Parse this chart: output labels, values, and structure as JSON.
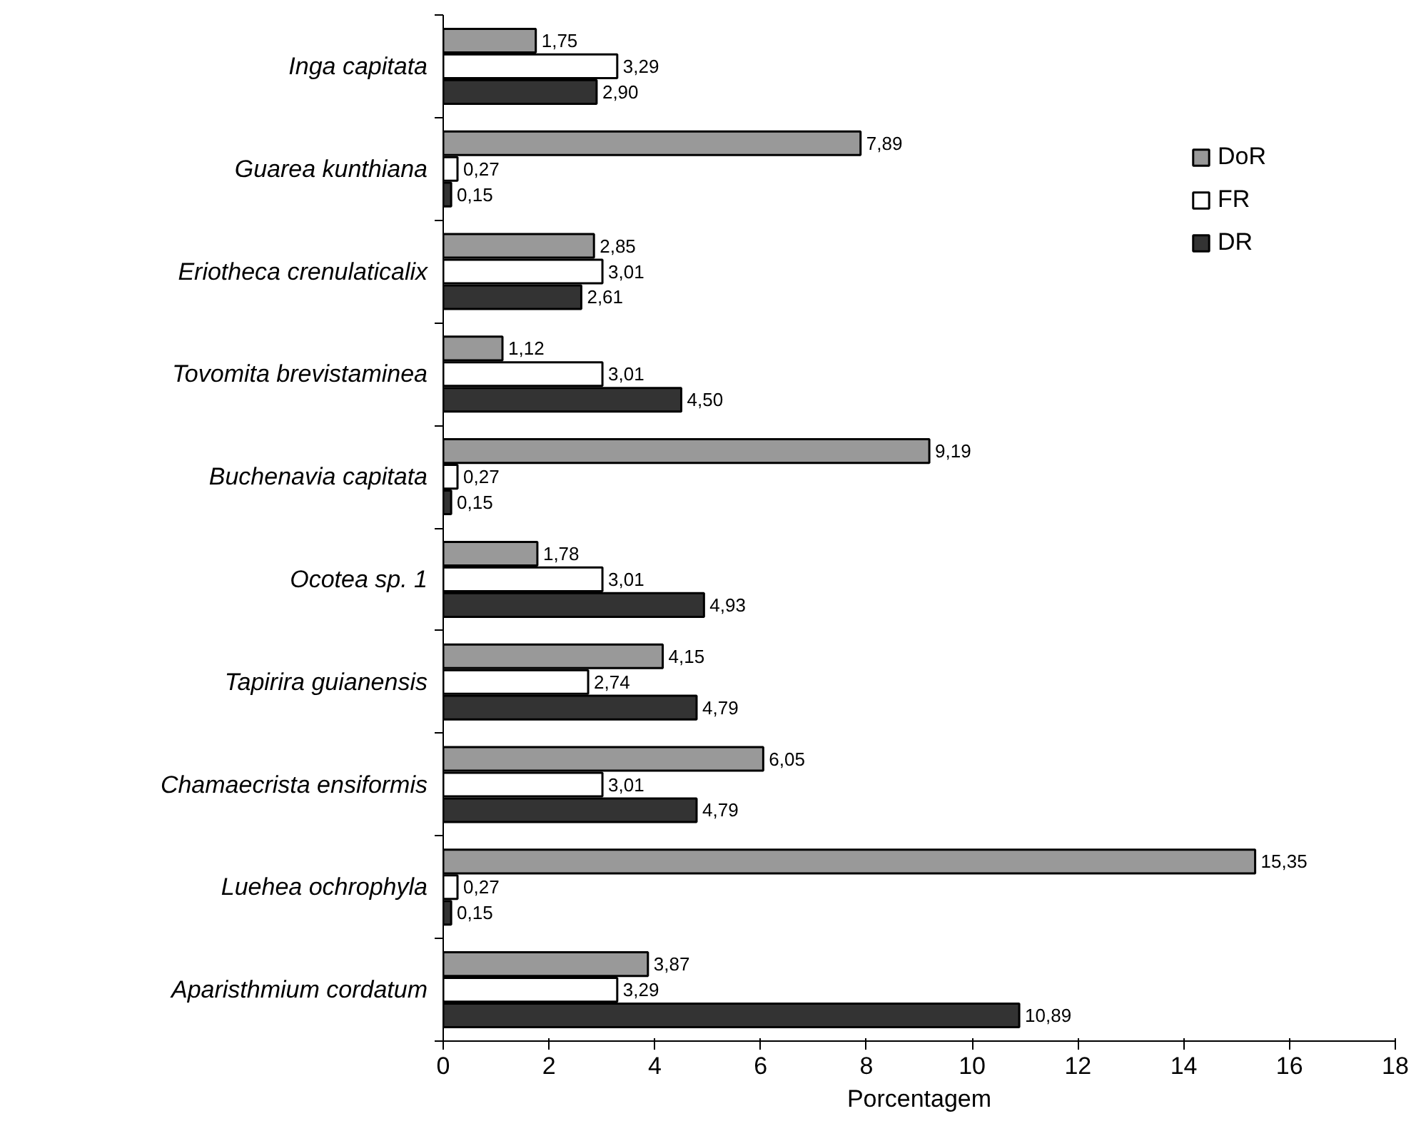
{
  "chart_data": {
    "type": "bar",
    "orientation": "horizontal",
    "xlabel": "Porcentagem",
    "categories": [
      "Inga capitata",
      "Guarea kunthiana",
      "Eriotheca crenulaticalix",
      "Tovomita brevistaminea",
      "Buchenavia capitata",
      "Ocotea sp. 1",
      "Tapirira guianensis",
      "Chamaecrista ensiformis",
      "Luehea ochrophyla",
      "Aparisthmium cordatum"
    ],
    "series": [
      {
        "name": "DoR",
        "color": "#999999",
        "values": [
          1.75,
          7.89,
          2.85,
          1.12,
          9.19,
          1.78,
          4.15,
          6.05,
          15.35,
          3.87
        ],
        "value_labels": [
          "1,75",
          "7,89",
          "2,85",
          "1,12",
          "9,19",
          "1,78",
          "4,15",
          "6,05",
          "15,35",
          "3,87"
        ]
      },
      {
        "name": "FR",
        "color": "#ffffff",
        "values": [
          3.29,
          0.27,
          3.01,
          3.01,
          0.27,
          3.01,
          2.74,
          3.01,
          0.27,
          3.29
        ],
        "value_labels": [
          "3,29",
          "0,27",
          "3,01",
          "3,01",
          "0,27",
          "3,01",
          "2,74",
          "3,01",
          "0,27",
          "3,29"
        ]
      },
      {
        "name": "DR",
        "color": "#333333",
        "values": [
          2.9,
          0.15,
          2.61,
          4.5,
          0.15,
          4.93,
          4.79,
          4.79,
          0.15,
          10.89
        ],
        "value_labels": [
          "2,90",
          "0,15",
          "2,61",
          "4,50",
          "0,15",
          "4,93",
          "4,79",
          "4,79",
          "0,15",
          "10,89"
        ]
      }
    ],
    "xlim": [
      0,
      18
    ],
    "xticks": [
      0,
      2,
      4,
      6,
      8,
      10,
      12,
      14,
      16,
      18
    ],
    "grid": false,
    "legend": "top right"
  }
}
